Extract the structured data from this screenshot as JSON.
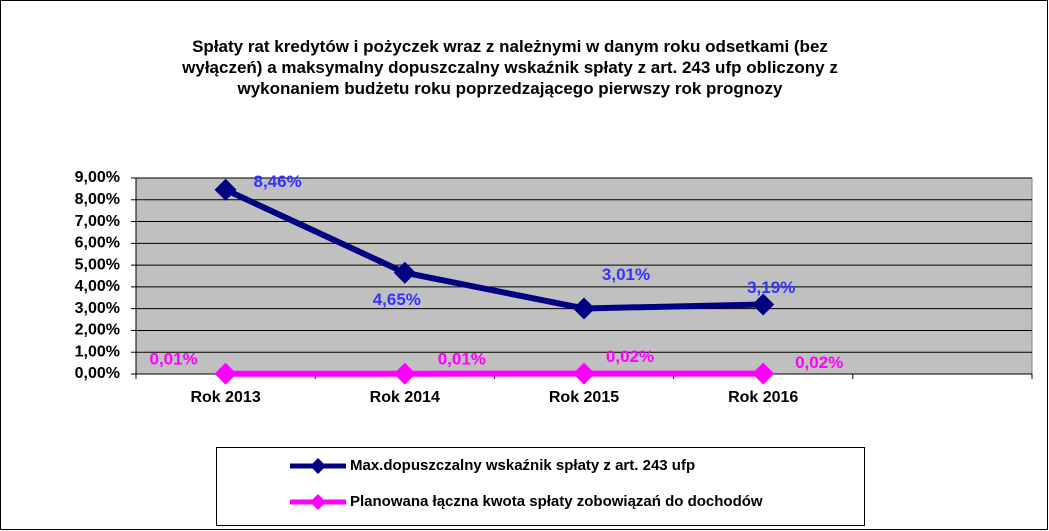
{
  "chart_data": {
    "type": "line",
    "title": "Spłaty rat kredytów i pożyczek wraz z należnymi w danym roku odsetkami (bez wyłączeń) a maksymalny dopuszczalny wskaźnik spłaty z art. 243 ufp obliczony z wykonaniem  budżetu roku poprzedzającego pierwszy rok prognozy",
    "categories": [
      "Rok 2013",
      "Rok 2014",
      "Rok 2015",
      "Rok 2016",
      null
    ],
    "series": [
      {
        "name": "Max.dopuszczalny wskaźnik spłaty z art. 243 ufp",
        "color": "#000080",
        "label_color": "#3333ff",
        "values": [
          8.46,
          4.65,
          3.01,
          3.19,
          null
        ],
        "value_labels": [
          "8,46%",
          "4,65%",
          "3,01%",
          "3,19%",
          null
        ]
      },
      {
        "name": "Planowana łączna kwota spłaty zobowiązań do dochodów",
        "color": "#ff00ff",
        "label_color": "#ff00ff",
        "values": [
          0.01,
          0.01,
          0.02,
          0.02,
          null
        ],
        "value_labels": [
          "0,01%",
          "0,01%",
          "0,02%",
          "0,02%",
          null
        ]
      }
    ],
    "ylim": [
      0,
      9
    ],
    "yticks": [
      {
        "value": 0,
        "label": "0,00%"
      },
      {
        "value": 1,
        "label": "1,00%"
      },
      {
        "value": 2,
        "label": "2,00%"
      },
      {
        "value": 3,
        "label": "3,00%"
      },
      {
        "value": 4,
        "label": "4,00%"
      },
      {
        "value": 5,
        "label": "5,00%"
      },
      {
        "value": 6,
        "label": "6,00%"
      },
      {
        "value": 7,
        "label": "7,00%"
      },
      {
        "value": 8,
        "label": "8,00%"
      },
      {
        "value": 9,
        "label": "9,00%"
      }
    ],
    "grid": true,
    "legend": "bottom"
  }
}
